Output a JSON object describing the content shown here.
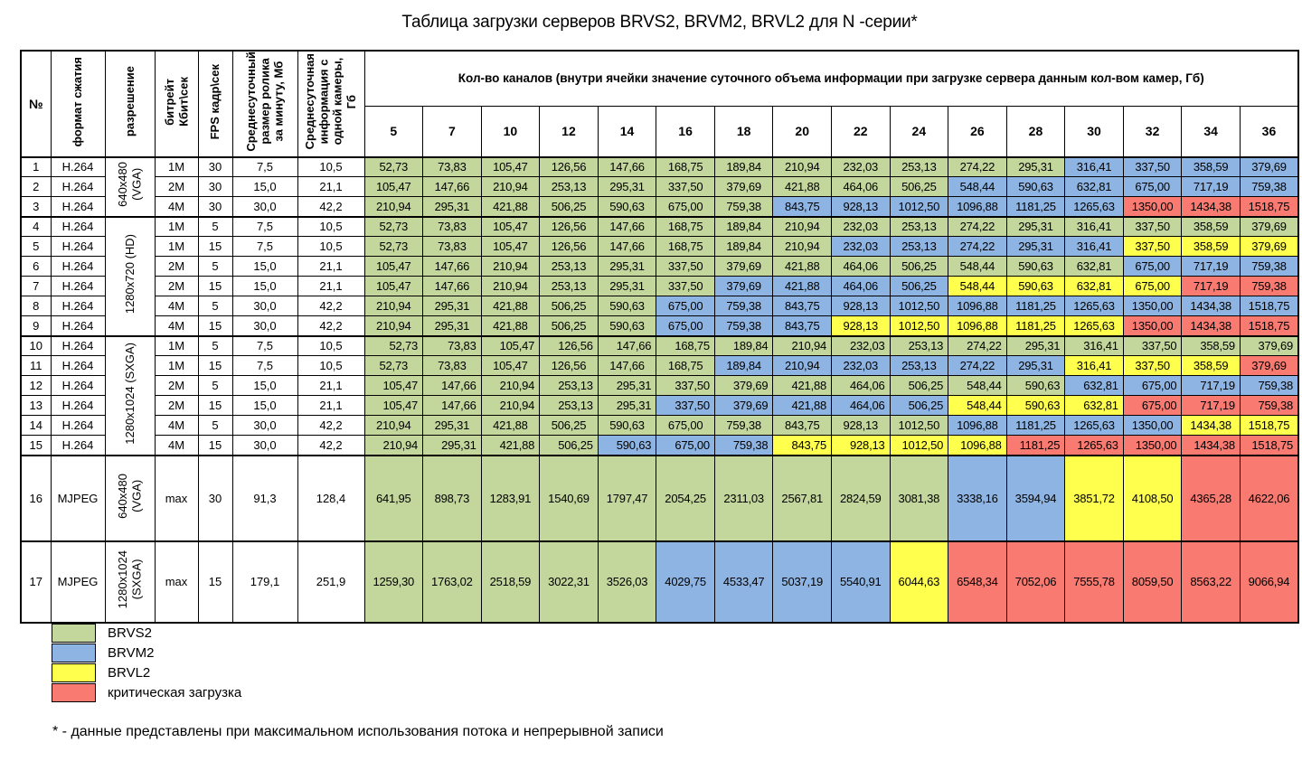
{
  "page": {
    "title": "Таблица загрузки серверов  BRVS2, BRVM2, BRVL2 для N -серии*",
    "footnote": "* - данные представлены при максимальном использования потока и непрерывной записи"
  },
  "colors": {
    "g": "#c3d69b",
    "b": "#8db4e2",
    "y": "#ffff4e",
    "r": "#f97a70"
  },
  "legend": [
    {
      "code": "g",
      "label": "BRVS2"
    },
    {
      "code": "b",
      "label": "BRVM2"
    },
    {
      "code": "y",
      "label": "BRVL2"
    },
    {
      "code": "r",
      "label": "критическая загрузка"
    }
  ],
  "table": {
    "headers": {
      "num": "№",
      "format": "формат сжатия",
      "resolution": "разрешение",
      "bitrate": "битрейт\nКбит\\сек",
      "fps": "FPS кадр\\сек",
      "clip": "Среднесуточный\nразмер ролика\nза минуту, Мб",
      "info": "Среднесуточная\nинформация с\nодной камеры,\nГб",
      "channels_title": "Кол-во каналов (внутри ячейки значение суточного объема информации при загрузке сервера данным кол-вом камер, Гб)",
      "channels": [
        "5",
        "7",
        "10",
        "12",
        "14",
        "16",
        "18",
        "20",
        "22",
        "24",
        "26",
        "28",
        "30",
        "32",
        "34",
        "36"
      ]
    },
    "rows": [
      {
        "n": "1",
        "fmt": "H.264",
        "res": "640x480\n(VGA)",
        "res_span": 3,
        "bit": "1M",
        "fps": "30",
        "clip": "7,5",
        "info": "10,5",
        "align": "center",
        "group_start": true,
        "values": [
          "52,73",
          "73,83",
          "105,47",
          "126,56",
          "147,66",
          "168,75",
          "189,84",
          "210,94",
          "232,03",
          "253,13",
          "274,22",
          "295,31",
          "316,41",
          "337,50",
          "358,59",
          "379,69"
        ],
        "colors": "ggggggggggggbbbb"
      },
      {
        "n": "2",
        "fmt": "H.264",
        "bit": "2M",
        "fps": "30",
        "clip": "15,0",
        "info": "21,1",
        "align": "center",
        "values": [
          "105,47",
          "147,66",
          "210,94",
          "253,13",
          "295,31",
          "337,50",
          "379,69",
          "421,88",
          "464,06",
          "506,25",
          "548,44",
          "590,63",
          "632,81",
          "675,00",
          "717,19",
          "759,38"
        ],
        "colors": "ggggggggggbbbbbb"
      },
      {
        "n": "3",
        "fmt": "H.264",
        "bit": "4M",
        "fps": "30",
        "clip": "30,0",
        "info": "42,2",
        "align": "center",
        "values": [
          "210,94",
          "295,31",
          "421,88",
          "506,25",
          "590,63",
          "675,00",
          "759,38",
          "843,75",
          "928,13",
          "1012,50",
          "1096,88",
          "1181,25",
          "1265,63",
          "1350,00",
          "1434,38",
          "1518,75"
        ],
        "colors": "gggggggbbbbbbrrr"
      },
      {
        "n": "4",
        "fmt": "H.264",
        "res": "1280x720 (HD)",
        "res_span": 6,
        "bit": "1M",
        "fps": "5",
        "clip": "7,5",
        "info": "10,5",
        "align": "center",
        "group_start": true,
        "values": [
          "52,73",
          "73,83",
          "105,47",
          "126,56",
          "147,66",
          "168,75",
          "189,84",
          "210,94",
          "232,03",
          "253,13",
          "274,22",
          "295,31",
          "316,41",
          "337,50",
          "358,59",
          "379,69"
        ],
        "colors": "gggggggggggggggg"
      },
      {
        "n": "5",
        "fmt": "H.264",
        "bit": "1M",
        "fps": "15",
        "clip": "7,5",
        "info": "10,5",
        "align": "center",
        "values": [
          "52,73",
          "73,83",
          "105,47",
          "126,56",
          "147,66",
          "168,75",
          "189,84",
          "210,94",
          "232,03",
          "253,13",
          "274,22",
          "295,31",
          "316,41",
          "337,50",
          "358,59",
          "379,69"
        ],
        "colors": "ggggggggbbbbbyyy"
      },
      {
        "n": "6",
        "fmt": "H.264",
        "bit": "2M",
        "fps": "5",
        "clip": "15,0",
        "info": "21,1",
        "align": "center",
        "values": [
          "105,47",
          "147,66",
          "210,94",
          "253,13",
          "295,31",
          "337,50",
          "379,69",
          "421,88",
          "464,06",
          "506,25",
          "548,44",
          "590,63",
          "632,81",
          "675,00",
          "717,19",
          "759,38"
        ],
        "colors": "gggggggggggggbbb"
      },
      {
        "n": "7",
        "fmt": "H.264",
        "bit": "2M",
        "fps": "15",
        "clip": "15,0",
        "info": "21,1",
        "align": "center",
        "values": [
          "105,47",
          "147,66",
          "210,94",
          "253,13",
          "295,31",
          "337,50",
          "379,69",
          "421,88",
          "464,06",
          "506,25",
          "548,44",
          "590,63",
          "632,81",
          "675,00",
          "717,19",
          "759,38"
        ],
        "colors": "ggggggbbbbyyyyrr"
      },
      {
        "n": "8",
        "fmt": "H.264",
        "bit": "4M",
        "fps": "5",
        "clip": "30,0",
        "info": "42,2",
        "align": "center",
        "values": [
          "210,94",
          "295,31",
          "421,88",
          "506,25",
          "590,63",
          "675,00",
          "759,38",
          "843,75",
          "928,13",
          "1012,50",
          "1096,88",
          "1181,25",
          "1265,63",
          "1350,00",
          "1434,38",
          "1518,75"
        ],
        "colors": "gggggbbbbbbbbbbb"
      },
      {
        "n": "9",
        "fmt": "H.264",
        "bit": "4M",
        "fps": "15",
        "clip": "30,0",
        "info": "42,2",
        "align": "center",
        "values": [
          "210,94",
          "295,31",
          "421,88",
          "506,25",
          "590,63",
          "675,00",
          "759,38",
          "843,75",
          "928,13",
          "1012,50",
          "1096,88",
          "1181,25",
          "1265,63",
          "1350,00",
          "1434,38",
          "1518,75"
        ],
        "colors": "gggggbbbyyyyyrrr"
      },
      {
        "n": "10",
        "fmt": "H.264",
        "res": "1280x1024 (SXGA)",
        "res_span": 6,
        "bit": "1M",
        "fps": "5",
        "clip": "7,5",
        "info": "10,5",
        "align": "right",
        "group_start": true,
        "values": [
          "52,73",
          "73,83",
          "105,47",
          "126,56",
          "147,66",
          "168,75",
          "189,84",
          "210,94",
          "232,03",
          "253,13",
          "274,22",
          "295,31",
          "316,41",
          "337,50",
          "358,59",
          "379,69"
        ],
        "colors": "gggggggggggggggg"
      },
      {
        "n": "11",
        "fmt": "H.264",
        "bit": "1M",
        "fps": "15",
        "clip": "7,5",
        "info": "10,5",
        "align": "center",
        "values": [
          "52,73",
          "73,83",
          "105,47",
          "126,56",
          "147,66",
          "168,75",
          "189,84",
          "210,94",
          "232,03",
          "253,13",
          "274,22",
          "295,31",
          "316,41",
          "337,50",
          "358,59",
          "379,69"
        ],
        "colors": "ggggggbbbbbbyyyr"
      },
      {
        "n": "12",
        "fmt": "H.264",
        "bit": "2M",
        "fps": "5",
        "clip": "15,0",
        "info": "21,1",
        "align": "right",
        "values": [
          "105,47",
          "147,66",
          "210,94",
          "253,13",
          "295,31",
          "337,50",
          "379,69",
          "421,88",
          "464,06",
          "506,25",
          "548,44",
          "590,63",
          "632,81",
          "675,00",
          "717,19",
          "759,38"
        ],
        "colors": "ggggggggggggbbbb"
      },
      {
        "n": "13",
        "fmt": "H.264",
        "bit": "2M",
        "fps": "15",
        "clip": "15,0",
        "info": "21,1",
        "align": "right",
        "values": [
          "105,47",
          "147,66",
          "210,94",
          "253,13",
          "295,31",
          "337,50",
          "379,69",
          "421,88",
          "464,06",
          "506,25",
          "548,44",
          "590,63",
          "632,81",
          "675,00",
          "717,19",
          "759,38"
        ],
        "colors": "gggggbbbbbyyyrrr"
      },
      {
        "n": "14",
        "fmt": "H.264",
        "bit": "4M",
        "fps": "5",
        "clip": "30,0",
        "info": "42,2",
        "align": "center",
        "values": [
          "210,94",
          "295,31",
          "421,88",
          "506,25",
          "590,63",
          "675,00",
          "759,38",
          "843,75",
          "928,13",
          "1012,50",
          "1096,88",
          "1181,25",
          "1265,63",
          "1350,00",
          "1434,38",
          "1518,75"
        ],
        "colors": "ggggggggggbbbbyy"
      },
      {
        "n": "15",
        "fmt": "H.264",
        "bit": "4M",
        "fps": "15",
        "clip": "30,0",
        "info": "42,2",
        "align": "right",
        "values": [
          "210,94",
          "295,31",
          "421,88",
          "506,25",
          "590,63",
          "675,00",
          "759,38",
          "843,75",
          "928,13",
          "1012,50",
          "1096,88",
          "1181,25",
          "1265,63",
          "1350,00",
          "1434,38",
          "1518,75"
        ],
        "colors": "ggggbbbyyyyrrrrr"
      },
      {
        "n": "16",
        "fmt": "MJPEG",
        "res": "640x480\n(VGA)",
        "res_span": 1,
        "bit": "max",
        "fps": "30",
        "clip": "91,3",
        "info": "128,4",
        "align": "center",
        "group_start": true,
        "values": [
          "641,95",
          "898,73",
          "1283,91",
          "1540,69",
          "1797,47",
          "2054,25",
          "2311,03",
          "2567,81",
          "2824,59",
          "3081,38",
          "3338,16",
          "3594,94",
          "3851,72",
          "4108,50",
          "4365,28",
          "4622,06"
        ],
        "colors": "ggggggggggbbyyrr"
      },
      {
        "n": "17",
        "fmt": "MJPEG",
        "res": "1280x1024\n(SXGA)",
        "res_span": 1,
        "bit": "max",
        "fps": "15",
        "clip": "179,1",
        "info": "251,9",
        "align": "center",
        "group_start": true,
        "values": [
          "1259,30",
          "1763,02",
          "2518,59",
          "3022,31",
          "3526,03",
          "4029,75",
          "4533,47",
          "5037,19",
          "5540,91",
          "6044,63",
          "6548,34",
          "7052,06",
          "7555,78",
          "8059,50",
          "8563,22",
          "9066,94"
        ],
        "colors": "gggggbbbbyrrrrrr"
      }
    ]
  }
}
